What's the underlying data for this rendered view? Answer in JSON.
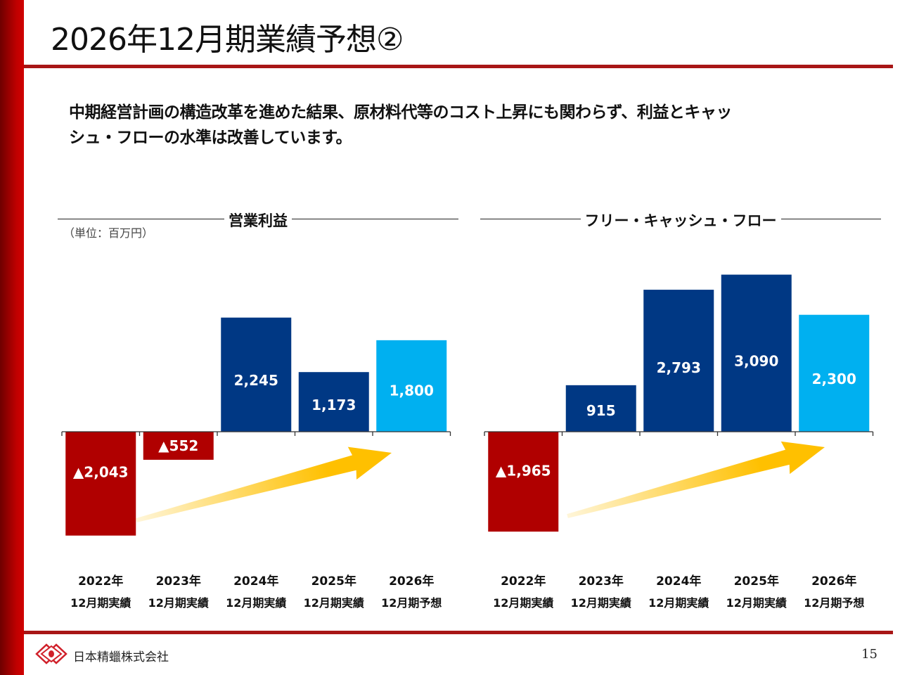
{
  "page": {
    "title": "2026年12月期業績予想②",
    "lead_line1": "中期経営計画の構造改革を進めた結果、原材料代等のコスト上昇にも関わらず、利益とキャッ",
    "lead_line2": "シュ・フローの水準は改善しています。",
    "unit_label": "（単位：百万円）",
    "footer_company": "日本精蠟株式会社",
    "page_number": "15",
    "logo_icon": "diamond-emblem-icon",
    "colors": {
      "accent_red": "#C00000",
      "rule_red": "#A81616",
      "actual_blue": "#003884",
      "forecast_blue": "#00B0F0",
      "negative_red": "#B00000",
      "arrow_yellow": "#FFC000"
    }
  },
  "chart_data": [
    {
      "type": "bar",
      "title": "営業利益",
      "unit": "百万円",
      "categories": [
        "2022年\n12月期実績",
        "2023年\n12月期実績",
        "2024年\n12月期実績",
        "2025年\n12月期実績",
        "2026年\n12月期予想"
      ],
      "category_year": [
        "2022年",
        "2023年",
        "2024年",
        "2025年",
        "2026年"
      ],
      "category_sub": [
        "12月期実績",
        "12月期実績",
        "12月期実績",
        "12月期実績",
        "12月期予想"
      ],
      "values": [
        -2043,
        -552,
        2245,
        1173,
        1800
      ],
      "labels": [
        "▲2,043",
        "▲552",
        "2,245",
        "1,173",
        "1,800"
      ],
      "kinds": [
        "negative",
        "negative",
        "actual",
        "actual",
        "forecast"
      ],
      "ylim": [
        -2100,
        2300
      ],
      "annotation": "upward trend arrow",
      "grid": false
    },
    {
      "type": "bar",
      "title": "フリー・キャッシュ・フロー",
      "unit": "百万円",
      "categories": [
        "2022年\n12月期実績",
        "2023年\n12月期実績",
        "2024年\n12月期実績",
        "2025年\n12月期実績",
        "2026年\n12月期予想"
      ],
      "category_year": [
        "2022年",
        "2023年",
        "2024年",
        "2025年",
        "2026年"
      ],
      "category_sub": [
        "12月期実績",
        "12月期実績",
        "12月期実績",
        "12月期実績",
        "12月期予想"
      ],
      "values": [
        -1965,
        915,
        2793,
        3090,
        2300
      ],
      "labels": [
        "▲1,965",
        "915",
        "2,793",
        "3,090",
        "2,300"
      ],
      "kinds": [
        "negative",
        "actual",
        "actual",
        "actual",
        "forecast"
      ],
      "ylim": [
        -2100,
        3100
      ],
      "annotation": "upward trend arrow",
      "grid": false
    }
  ]
}
